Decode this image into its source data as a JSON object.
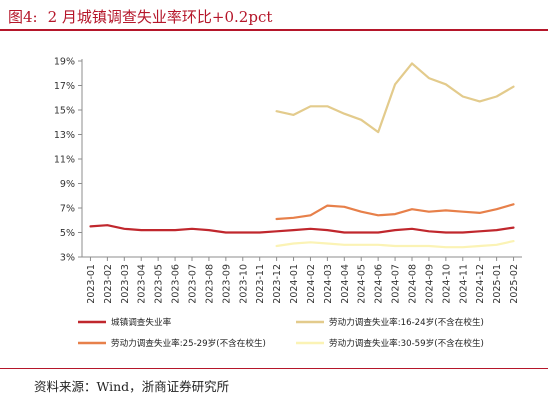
{
  "figure": {
    "number": "图4:",
    "title": "2 月城镇调查失业率环比+0.2pct",
    "source": "资料来源：Wind，浙商证券研究所"
  },
  "chart_data": {
    "type": "line",
    "categories": [
      "2023-01",
      "2023-02",
      "2023-03",
      "2023-04",
      "2023-05",
      "2023-06",
      "2023-07",
      "2023-08",
      "2023-09",
      "2023-10",
      "2023-11",
      "2023-12",
      "2024-01",
      "2024-02",
      "2024-03",
      "2024-04",
      "2024-05",
      "2024-06",
      "2024-07",
      "2024-08",
      "2024-09",
      "2024-10",
      "2024-11",
      "2024-12",
      "2025-01",
      "2025-02"
    ],
    "ylim": [
      3,
      19
    ],
    "yticks": [
      3,
      5,
      7,
      9,
      11,
      13,
      15,
      17,
      19
    ],
    "ytick_labels": [
      "3%",
      "5%",
      "7%",
      "9%",
      "11%",
      "13%",
      "15%",
      "17%",
      "19%"
    ],
    "grid": false,
    "legend_position": "bottom",
    "series": [
      {
        "name": "城镇调查失业率",
        "color": "#c0272d",
        "values": [
          5.5,
          5.6,
          5.3,
          5.2,
          5.2,
          5.2,
          5.3,
          5.2,
          5.0,
          5.0,
          5.0,
          5.1,
          5.2,
          5.3,
          5.2,
          5.0,
          5.0,
          5.0,
          5.2,
          5.3,
          5.1,
          5.0,
          5.0,
          5.1,
          5.2,
          5.4
        ]
      },
      {
        "name": "劳动力调查失业率:16-24岁(不含在校生)",
        "color": "#e3cb8c",
        "values": [
          null,
          null,
          null,
          null,
          null,
          null,
          null,
          null,
          null,
          null,
          null,
          14.9,
          14.6,
          15.3,
          15.3,
          14.7,
          14.2,
          13.2,
          17.1,
          18.8,
          17.6,
          17.1,
          16.1,
          15.7,
          16.1,
          16.9
        ]
      },
      {
        "name": "劳动力调查失业率:25-29岁(不含在校生)",
        "color": "#e7804a",
        "values": [
          null,
          null,
          null,
          null,
          null,
          null,
          null,
          null,
          null,
          null,
          null,
          6.1,
          6.2,
          6.4,
          7.2,
          7.1,
          6.7,
          6.4,
          6.5,
          6.9,
          6.7,
          6.8,
          6.7,
          6.6,
          6.9,
          7.3
        ]
      },
      {
        "name": "劳动力调查失业率:30-59岁(不含在校生)",
        "color": "#fbf3b5",
        "values": [
          null,
          null,
          null,
          null,
          null,
          null,
          null,
          null,
          null,
          null,
          null,
          3.9,
          4.1,
          4.2,
          4.1,
          4.0,
          4.0,
          4.0,
          3.9,
          3.9,
          3.9,
          3.8,
          3.8,
          3.9,
          4.0,
          4.3
        ]
      }
    ]
  }
}
